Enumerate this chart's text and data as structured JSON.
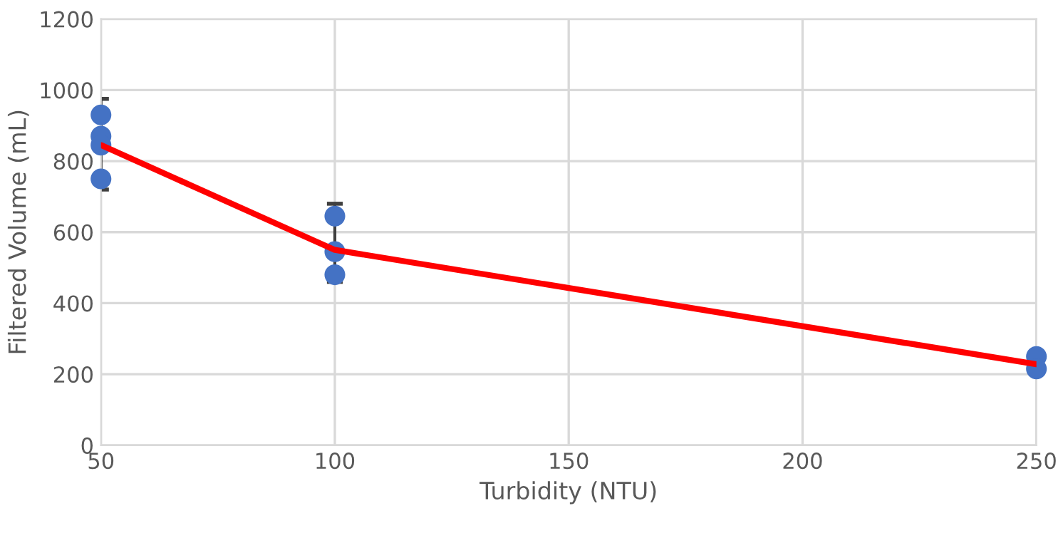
{
  "chart_data": {
    "type": "scatter",
    "xlabel": "Turbidity (NTU)",
    "ylabel": "Filtered Volume (mL)",
    "xlim": [
      50,
      250
    ],
    "xticks": [
      50,
      100,
      150,
      200,
      250
    ],
    "ylim": [
      0,
      1200
    ],
    "yticks": [
      0,
      200,
      400,
      600,
      800,
      1000,
      1200
    ],
    "grid": true,
    "legend": false,
    "series": [
      {
        "type": "line",
        "color": "#ff0000",
        "x": [
          50,
          100,
          250
        ],
        "values": [
          845,
          550,
          228
        ],
        "errors": [
          [
            720,
            975
          ],
          [
            460,
            680
          ],
          null
        ],
        "marker": "none"
      },
      {
        "color": "#4472c4",
        "x": [
          50,
          50,
          50,
          50,
          100,
          100,
          100,
          250,
          250
        ],
        "values": [
          930,
          870,
          845,
          750,
          645,
          545,
          480,
          250,
          215
        ],
        "marker": "circle"
      }
    ]
  }
}
